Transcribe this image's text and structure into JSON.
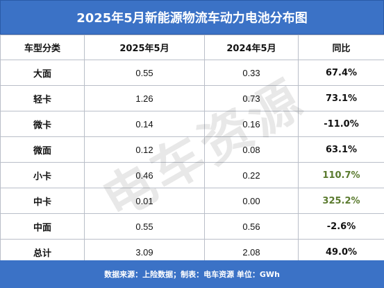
{
  "chart_data": {
    "type": "table",
    "title": "2025年5月新能源物流车动力电池分布图",
    "columns": [
      "车型分类",
      "2025年5月",
      "2024年5月",
      "同比"
    ],
    "rows": [
      {
        "category": "大面",
        "may_2025": "0.55",
        "may_2024": "0.33",
        "yoy": "67.4%",
        "highlight": false
      },
      {
        "category": "轻卡",
        "may_2025": "1.26",
        "may_2024": "0.73",
        "yoy": "73.1%",
        "highlight": false
      },
      {
        "category": "微卡",
        "may_2025": "0.14",
        "may_2024": "0.16",
        "yoy": "-11.0%",
        "highlight": false
      },
      {
        "category": "微面",
        "may_2025": "0.12",
        "may_2024": "0.08",
        "yoy": "63.1%",
        "highlight": false
      },
      {
        "category": "小卡",
        "may_2025": "0.46",
        "may_2024": "0.22",
        "yoy": "110.7%",
        "highlight": true
      },
      {
        "category": "中卡",
        "may_2025": "0.01",
        "may_2024": "0.00",
        "yoy": "325.2%",
        "highlight": true
      },
      {
        "category": "中面",
        "may_2025": "0.55",
        "may_2024": "0.56",
        "yoy": "-2.6%",
        "highlight": false
      },
      {
        "category": "总计",
        "may_2025": "3.09",
        "may_2024": "2.08",
        "yoy": "49.0%",
        "highlight": false
      }
    ],
    "footer": "数据来源：上险数据；制表：电车资源 单位：GWh",
    "watermark": "电车资源"
  },
  "colors": {
    "header_bg": "#3b72c6",
    "header_text": "#ffffff",
    "highlight_text": "#5a7a2e",
    "border": "#b9bec8"
  }
}
